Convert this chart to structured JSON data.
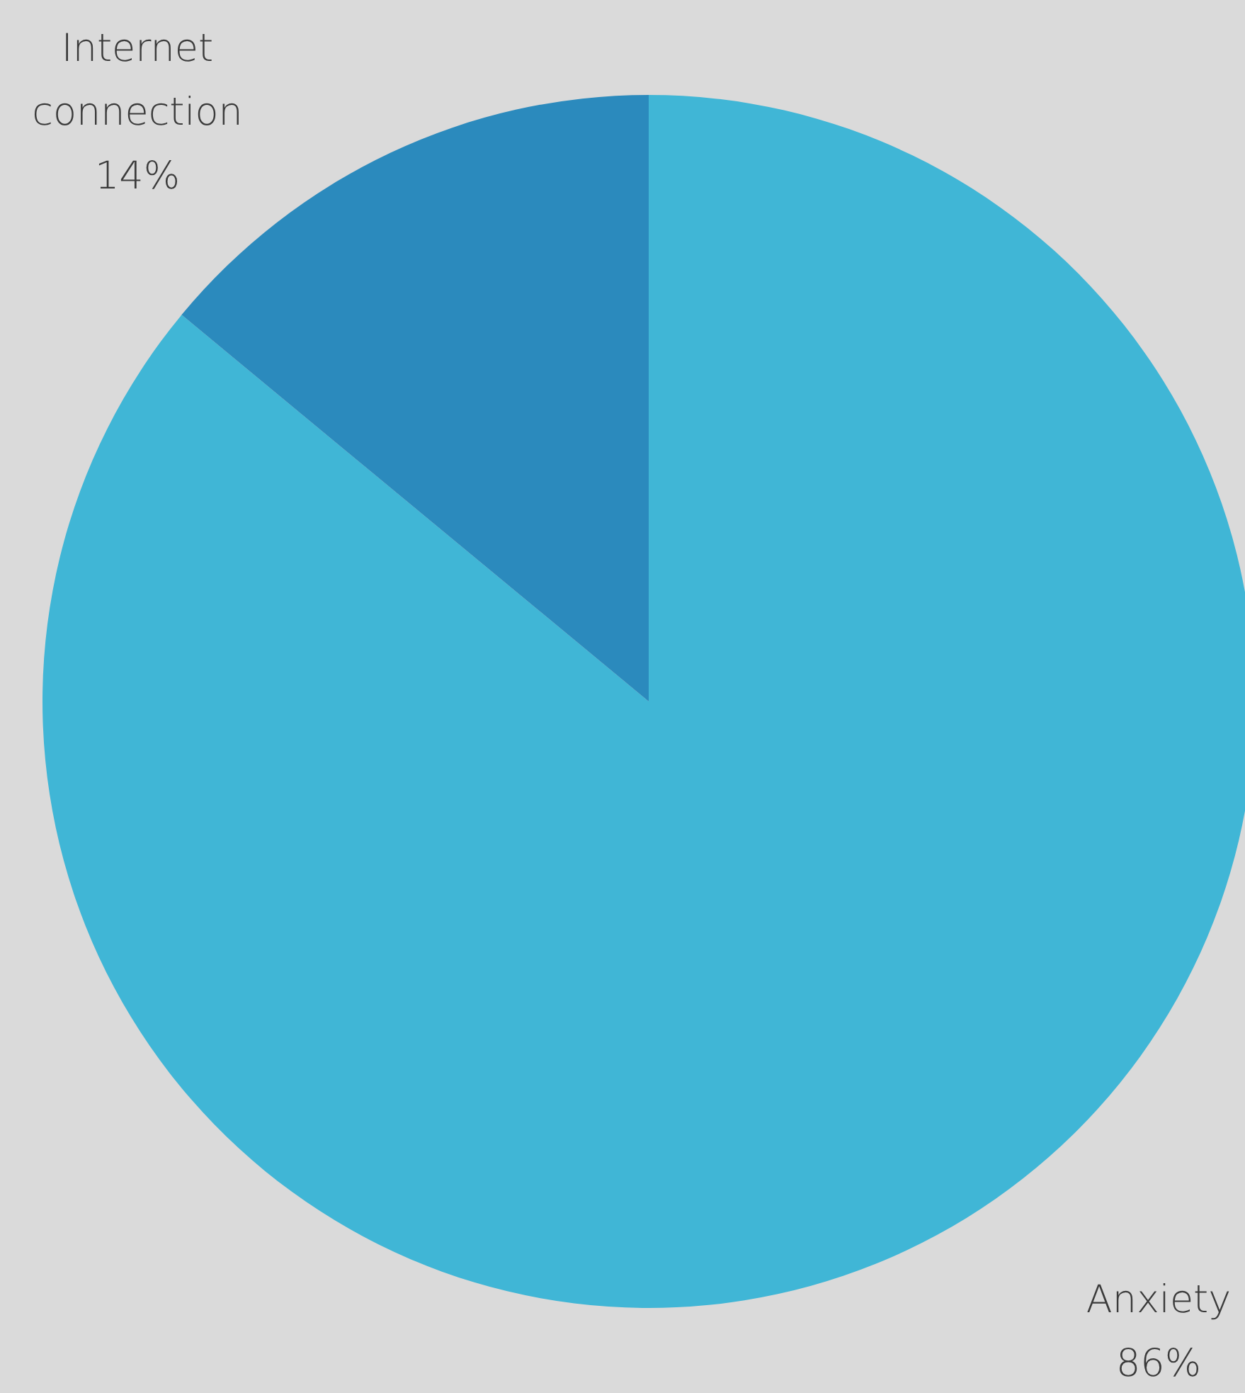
{
  "chart_data": {
    "type": "pie",
    "categories": [
      "Anxiety",
      "Internet connection"
    ],
    "values": [
      86,
      14
    ],
    "colors": [
      "#40b6d6",
      "#2b8abd"
    ],
    "value_labels": [
      "86%",
      "14%"
    ]
  }
}
